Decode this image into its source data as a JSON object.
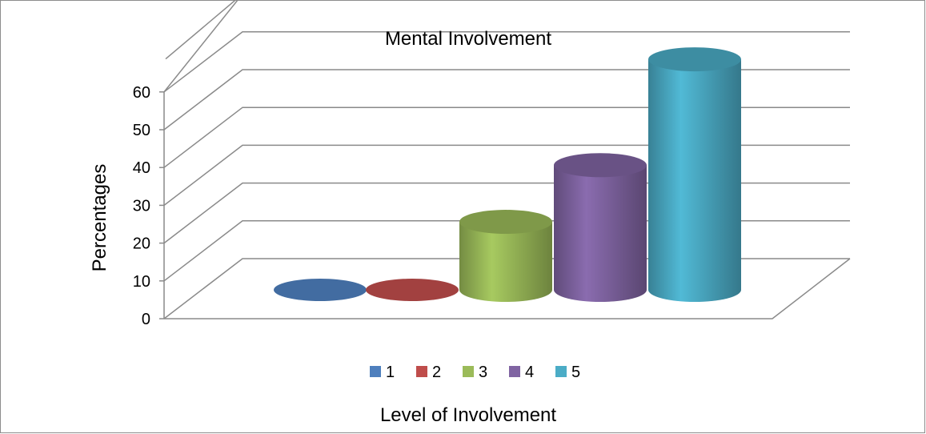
{
  "chart_data": {
    "type": "bar",
    "style": "3d-cylinder",
    "title": "Mental Involvement",
    "xlabel": "Level of Involvement",
    "ylabel": "Percentages",
    "categories": [
      "1",
      "2",
      "3",
      "4",
      "5"
    ],
    "values": [
      0,
      0,
      18,
      33,
      61
    ],
    "colors": [
      "#4e7fbd",
      "#bf4d4b",
      "#9bbb59",
      "#8064a2",
      "#4bacc6"
    ],
    "ylim": [
      0,
      60
    ],
    "yticks": [
      "0",
      "10",
      "20",
      "30",
      "40",
      "50",
      "60"
    ],
    "grid": true,
    "legend_position": "bottom"
  }
}
